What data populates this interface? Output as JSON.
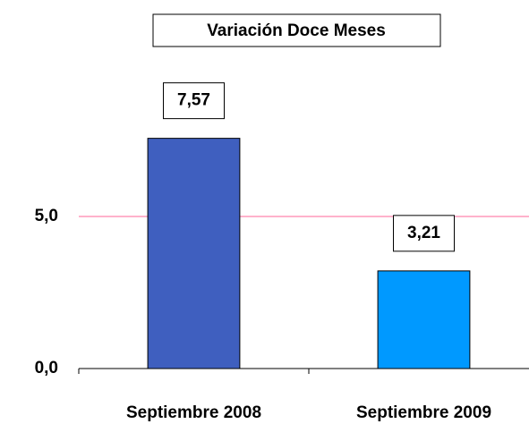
{
  "chart_data": {
    "type": "bar",
    "title": "Variación Doce Meses",
    "categories": [
      "Septiembre 2008",
      "Septiembre 2009"
    ],
    "values": [
      7.57,
      3.21
    ],
    "value_labels": [
      "7,57",
      "3,21"
    ],
    "colors": [
      "#3f5fbf",
      "#0099ff"
    ],
    "grid_color": "#ff6699",
    "ylim": [
      0,
      10
    ],
    "yticks": [
      {
        "value": 0,
        "label": "0,0"
      },
      {
        "value": 5,
        "label": "5,0"
      }
    ],
    "grid": true
  }
}
